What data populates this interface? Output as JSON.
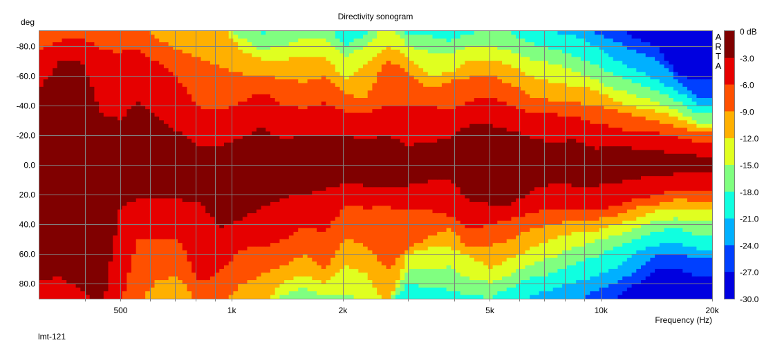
{
  "chart_data": {
    "type": "heatmap",
    "title": "Directivity sonogram",
    "xlabel": "Frequency (Hz)",
    "ylabel": "deg",
    "xscale": "log",
    "xlim": [
      300,
      20000
    ],
    "ylim": [
      -90,
      90
    ],
    "x_tick_labels": [
      {
        "value": 500,
        "label": "500"
      },
      {
        "value": 1000,
        "label": "1k"
      },
      {
        "value": 2000,
        "label": "2k"
      },
      {
        "value": 5000,
        "label": "5k"
      },
      {
        "value": 10000,
        "label": "10k"
      },
      {
        "value": 20000,
        "label": "20k"
      }
    ],
    "x_grid": [
      400,
      500,
      600,
      700,
      800,
      900,
      1000,
      2000,
      3000,
      4000,
      5000,
      6000,
      7000,
      8000,
      9000,
      10000
    ],
    "y_ticks": [
      {
        "value": -80,
        "label": "-80.0"
      },
      {
        "value": -60,
        "label": "-60.0"
      },
      {
        "value": -40,
        "label": "-40.0"
      },
      {
        "value": -20,
        "label": "-20.0"
      },
      {
        "value": 0,
        "label": "0.0"
      },
      {
        "value": 20,
        "label": "20.0"
      },
      {
        "value": 40,
        "label": "40.0"
      },
      {
        "value": 60,
        "label": "60.0"
      },
      {
        "value": 80,
        "label": "80.0"
      }
    ],
    "grid": true,
    "colorbar": {
      "placement": "right",
      "labels": [
        "0 dB",
        "-3.0",
        "-6.0",
        "-9.0",
        "-12.0",
        "-15.0",
        "-18.0",
        "-21.0",
        "-24.0",
        "-27.0",
        "-30.0"
      ],
      "colors": [
        "#800000",
        "#e60000",
        "#ff5000",
        "#ffb000",
        "#e0ff20",
        "#80ff80",
        "#10ffe0",
        "#00b0ff",
        "#0040ff",
        "#0000e0"
      ]
    },
    "contour_thresholds_db": [
      -3,
      -6,
      -9,
      -12,
      -15,
      -18,
      -21,
      -24,
      -27
    ],
    "contour_note": "For each frequency, angle magnitude (deg) at which response falls below each threshold; negative-angle side and positive-angle side. Missing = beyond 90 deg.",
    "contours": [
      {
        "freq": 303,
        "neg": [
          53,
          78
        ],
        "pos": [
          77
        ]
      },
      {
        "freq": 346,
        "neg": [
          70.5,
          83.5
        ],
        "pos": [
          75.6
        ]
      },
      {
        "freq": 393,
        "neg": [
          70,
          86
        ],
        "pos": [
          85
        ]
      },
      {
        "freq": 448,
        "neg": [
          32,
          76.5
        ],
        "pos": []
      },
      {
        "freq": 499,
        "neg": [
          31,
          76
        ],
        "pos": [
          28
        ]
      },
      {
        "freq": 556,
        "neg": [
          42,
          78
        ],
        "pos": [
          23,
          51
        ]
      },
      {
        "freq": 633,
        "neg": [
          31,
          68,
          84.5
        ],
        "pos": [
          22,
          50,
          76.5
        ]
      },
      {
        "freq": 720,
        "neg": [
          22,
          57,
          76.5
        ],
        "pos": [
          23,
          51,
          76
        ]
      },
      {
        "freq": 820,
        "neg": [
          13,
          38,
          71
        ],
        "pos": [
          26,
          80
        ]
      },
      {
        "freq": 933,
        "neg": [
          12.5,
          36,
          66
        ],
        "pos": [
          42,
          71
        ]
      },
      {
        "freq": 1062,
        "neg": [
          18.5,
          42,
          61,
          76,
          85
        ],
        "pos": [
          36,
          57,
          80
        ]
      },
      {
        "freq": 1209,
        "neg": [
          25,
          49,
          60,
          71,
          77.5,
          88
        ],
        "pos": [
          29,
          55,
          74
        ]
      },
      {
        "freq": 1377,
        "neg": [
          17,
          40,
          58,
          70.5,
          80
        ],
        "pos": [
          22,
          51,
          68,
          79,
          88
        ]
      },
      {
        "freq": 1567,
        "neg": [
          20,
          38.5,
          55.5,
          73,
          85
        ],
        "pos": [
          19.5,
          42,
          60,
          74,
          82.5
        ]
      },
      {
        "freq": 1784,
        "neg": [
          21,
          42,
          59,
          73,
          86
        ],
        "pos": [
          17,
          45,
          70,
          79,
          88
        ]
      },
      {
        "freq": 2031,
        "neg": [
          20,
          36,
          47,
          57,
          73,
          80
        ],
        "pos": [
          12.5,
          27,
          50,
          68,
          86
        ]
      },
      {
        "freq": 2312,
        "neg": [
          17,
          35,
          45,
          67,
          80,
          88
        ],
        "pos": [
          14,
          29,
          54,
          74
        ]
      },
      {
        "freq": 2632,
        "neg": [
          20,
          40,
          71,
          80
        ],
        "pos": [
          15,
          28,
          71
        ]
      },
      {
        "freq": 2996,
        "neg": [
          13,
          40,
          62,
          73,
          80,
          88
        ],
        "pos": [
          14,
          31,
          57,
          60,
          71,
          80
        ]
      },
      {
        "freq": 3411,
        "neg": [
          15,
          40,
          51,
          60,
          76,
          87
        ],
        "pos": [
          11,
          31,
          48,
          56,
          71,
          82
        ]
      },
      {
        "freq": 3883,
        "neg": [
          18.5,
          37,
          56,
          62,
          74,
          83.5
        ],
        "pos": [
          9,
          34,
          43,
          56,
          68,
          84
        ]
      },
      {
        "freq": 4420,
        "neg": [
          27,
          43,
          59,
          71,
          80,
          88
        ],
        "pos": [
          24.5,
          43,
          56,
          62,
          77.5,
          88
        ]
      },
      {
        "freq": 5031,
        "neg": [
          26.5,
          46,
          60,
          71,
          80
        ],
        "pos": [
          26.5,
          40,
          54,
          69.5,
          79,
          89
        ]
      },
      {
        "freq": 5728,
        "neg": [
          23,
          40,
          54,
          66,
          76,
          88
        ],
        "pos": [
          26.5,
          36,
          50,
          62,
          73,
          82
        ]
      },
      {
        "freq": 6520,
        "neg": [
          18.5,
          34,
          46,
          59,
          71,
          82
        ],
        "pos": [
          17,
          32.5,
          43,
          56,
          66.5,
          75.6,
          87
        ]
      },
      {
        "freq": 7421,
        "neg": [
          15,
          34,
          43,
          55.5,
          68,
          78,
          89
        ],
        "pos": [
          12.5,
          29,
          40,
          50,
          62,
          73,
          83.5
        ]
      },
      {
        "freq": 8449,
        "neg": [
          17,
          32.5,
          42,
          52.5,
          63.5,
          73,
          87
        ],
        "pos": [
          14,
          29,
          37,
          46,
          56,
          66.5,
          79
        ]
      },
      {
        "freq": 9618,
        "neg": [
          11,
          28,
          40,
          51,
          57,
          68,
          80,
          88
        ],
        "pos": [
          14,
          31,
          37,
          45,
          51,
          62,
          75.6,
          85
        ]
      },
      {
        "freq": 10949,
        "neg": [
          12.5,
          25,
          37,
          43,
          51,
          60,
          71,
          83.5
        ],
        "pos": [
          12.5,
          28,
          34,
          40,
          48,
          56,
          69.5,
          80,
          89
        ]
      },
      {
        "freq": 12464,
        "neg": [
          11,
          22,
          32.5,
          38.5,
          46,
          55.5,
          63.5,
          76,
          85
        ],
        "pos": [
          9,
          23,
          29,
          36,
          42,
          50,
          59,
          71,
          80
        ]
      },
      {
        "freq": 14191,
        "neg": [
          9,
          22,
          29,
          36,
          42,
          49.5,
          57,
          70,
          80
        ],
        "pos": [
          8,
          20,
          26.5,
          31,
          37,
          45,
          54,
          60,
          69.5
        ]
      },
      {
        "freq": 16157,
        "neg": [
          8,
          18.5,
          25,
          31,
          36,
          43,
          49.5,
          57,
          60
        ],
        "pos": [
          6,
          17,
          23,
          29,
          36,
          42,
          52.5,
          59,
          69.5
        ]
      },
      {
        "freq": 18390,
        "neg": [
          6,
          15,
          22,
          25,
          28,
          34,
          40,
          45,
          57
        ],
        "pos": [
          6,
          18.5,
          24.5,
          31,
          38.5,
          48,
          57,
          63.5,
          75.6
        ]
      }
    ]
  },
  "brand": {
    "letters": [
      "A",
      "R",
      "T",
      "A"
    ]
  },
  "footer": {
    "label": "lmt-121"
  }
}
